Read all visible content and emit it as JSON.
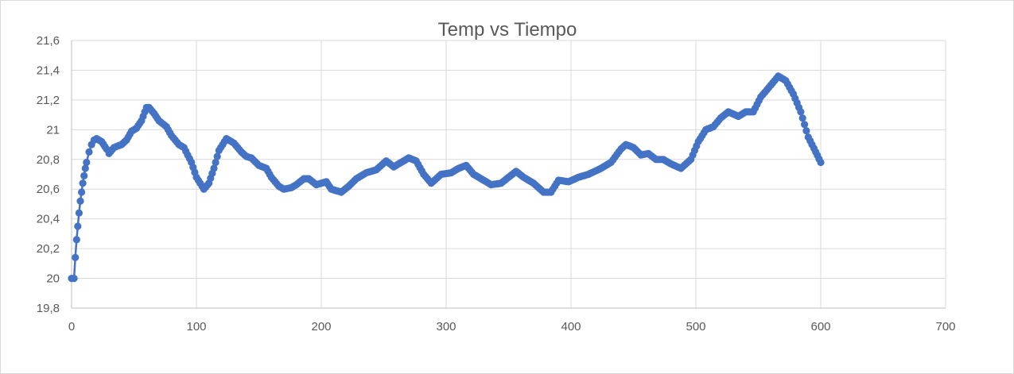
{
  "chart_data": {
    "type": "scatter",
    "title": "Temp vs Tiempo",
    "xlabel": "",
    "ylabel": "",
    "xlim": [
      0,
      700
    ],
    "ylim": [
      19.8,
      21.6
    ],
    "x_ticks": [
      0,
      100,
      200,
      300,
      400,
      500,
      600,
      700
    ],
    "y_ticks": [
      19.8,
      20,
      20.2,
      20.4,
      20.6,
      20.8,
      21,
      21.2,
      21.4,
      21.6
    ],
    "y_tick_labels": [
      "19,8",
      "20",
      "20,2",
      "20,4",
      "20,6",
      "20,8",
      "21",
      "21,2",
      "21,4",
      "21,6"
    ],
    "grid": true,
    "legend": "none",
    "color": "#4472c4",
    "series": [
      {
        "keypoints": [
          [
            0,
            20.0
          ],
          [
            2,
            20.0
          ],
          [
            3,
            20.14
          ],
          [
            4,
            20.26
          ],
          [
            5,
            20.35
          ],
          [
            6,
            20.44
          ],
          [
            7,
            20.52
          ],
          [
            8,
            20.58
          ],
          [
            9,
            20.64
          ],
          [
            10,
            20.69
          ],
          [
            11,
            20.74
          ],
          [
            12,
            20.78
          ],
          [
            14,
            20.85
          ],
          [
            16,
            20.9
          ],
          [
            18,
            20.93
          ],
          [
            20,
            20.94
          ],
          [
            24,
            20.92
          ],
          [
            28,
            20.87
          ],
          [
            30,
            20.84
          ],
          [
            34,
            20.88
          ],
          [
            40,
            20.9
          ],
          [
            44,
            20.93
          ],
          [
            48,
            20.99
          ],
          [
            52,
            21.01
          ],
          [
            56,
            21.06
          ],
          [
            60,
            21.15
          ],
          [
            62,
            21.15
          ],
          [
            66,
            21.11
          ],
          [
            70,
            21.06
          ],
          [
            76,
            21.02
          ],
          [
            80,
            20.96
          ],
          [
            86,
            20.9
          ],
          [
            90,
            20.88
          ],
          [
            96,
            20.78
          ],
          [
            100,
            20.68
          ],
          [
            106,
            20.6
          ],
          [
            110,
            20.64
          ],
          [
            114,
            20.74
          ],
          [
            118,
            20.86
          ],
          [
            124,
            20.94
          ],
          [
            130,
            20.91
          ],
          [
            136,
            20.85
          ],
          [
            140,
            20.82
          ],
          [
            144,
            20.81
          ],
          [
            150,
            20.76
          ],
          [
            156,
            20.74
          ],
          [
            160,
            20.68
          ],
          [
            166,
            20.62
          ],
          [
            170,
            20.6
          ],
          [
            176,
            20.61
          ],
          [
            180,
            20.63
          ],
          [
            186,
            20.67
          ],
          [
            190,
            20.67
          ],
          [
            196,
            20.63
          ],
          [
            204,
            20.65
          ],
          [
            208,
            20.6
          ],
          [
            212,
            20.59
          ],
          [
            216,
            20.58
          ],
          [
            222,
            20.62
          ],
          [
            228,
            20.67
          ],
          [
            236,
            20.71
          ],
          [
            244,
            20.73
          ],
          [
            252,
            20.79
          ],
          [
            258,
            20.75
          ],
          [
            264,
            20.78
          ],
          [
            270,
            20.81
          ],
          [
            276,
            20.79
          ],
          [
            282,
            20.7
          ],
          [
            288,
            20.64
          ],
          [
            296,
            20.7
          ],
          [
            304,
            20.71
          ],
          [
            310,
            20.74
          ],
          [
            316,
            20.76
          ],
          [
            322,
            20.7
          ],
          [
            330,
            20.66
          ],
          [
            336,
            20.63
          ],
          [
            344,
            20.64
          ],
          [
            350,
            20.68
          ],
          [
            356,
            20.72
          ],
          [
            362,
            20.68
          ],
          [
            370,
            20.64
          ],
          [
            378,
            20.58
          ],
          [
            384,
            20.58
          ],
          [
            390,
            20.66
          ],
          [
            398,
            20.65
          ],
          [
            406,
            20.68
          ],
          [
            414,
            20.7
          ],
          [
            424,
            20.74
          ],
          [
            432,
            20.78
          ],
          [
            440,
            20.87
          ],
          [
            444,
            20.9
          ],
          [
            450,
            20.88
          ],
          [
            456,
            20.83
          ],
          [
            462,
            20.84
          ],
          [
            468,
            20.8
          ],
          [
            474,
            20.8
          ],
          [
            480,
            20.77
          ],
          [
            488,
            20.74
          ],
          [
            496,
            20.8
          ],
          [
            502,
            20.92
          ],
          [
            508,
            21.0
          ],
          [
            514,
            21.02
          ],
          [
            520,
            21.08
          ],
          [
            526,
            21.12
          ],
          [
            534,
            21.09
          ],
          [
            540,
            21.12
          ],
          [
            546,
            21.12
          ],
          [
            552,
            21.22
          ],
          [
            560,
            21.3
          ],
          [
            566,
            21.36
          ],
          [
            572,
            21.33
          ],
          [
            578,
            21.24
          ],
          [
            584,
            21.12
          ],
          [
            590,
            20.95
          ],
          [
            596,
            20.85
          ],
          [
            600,
            20.78
          ]
        ],
        "sample_step": 1.5
      }
    ]
  }
}
